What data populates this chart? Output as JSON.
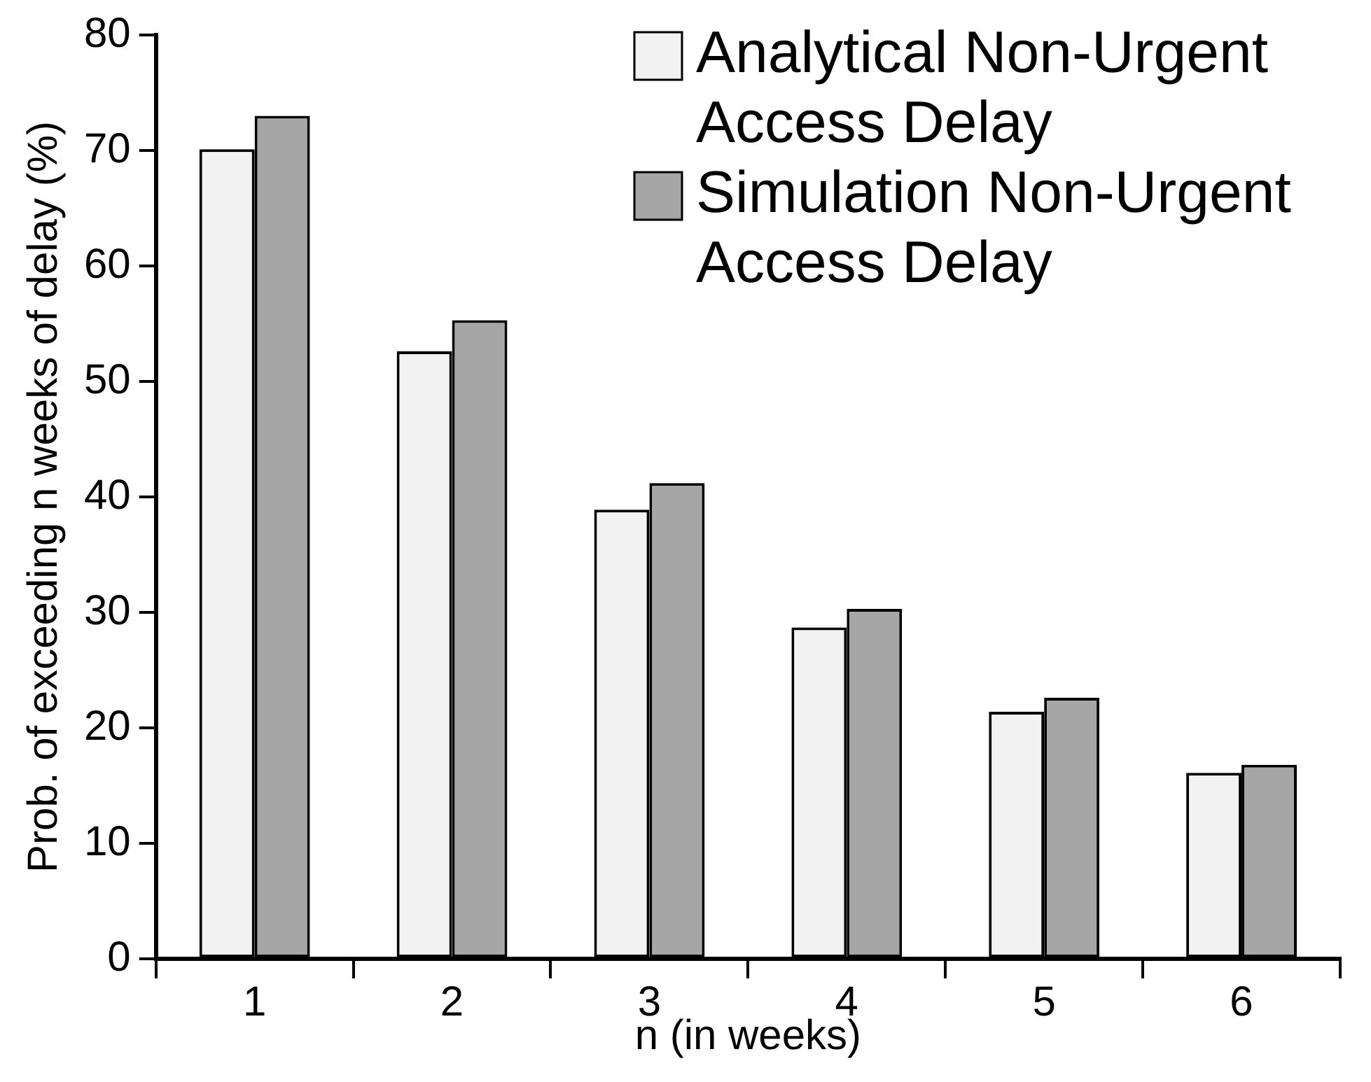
{
  "chart_data": {
    "type": "bar",
    "xlabel": "n (in weeks)",
    "ylabel": "Prob. of exceeding n weeks of delay (%)",
    "categories": [
      "1",
      "2",
      "3",
      "4",
      "5",
      "6"
    ],
    "series": [
      {
        "name": "Analytical Non-Urgent Access Delay",
        "color": "#f2f2f2",
        "values": [
          70.1,
          52.6,
          38.9,
          28.7,
          21.4,
          16.1
        ]
      },
      {
        "name": "Simulation Non-Urgent Access Delay",
        "color": "#a6a6a6",
        "values": [
          73.0,
          55.3,
          41.2,
          30.3,
          22.6,
          16.8
        ]
      }
    ],
    "ylim": [
      0,
      80
    ],
    "yticks": [
      0,
      10,
      20,
      30,
      40,
      50,
      60,
      70,
      80
    ],
    "grid": false,
    "legend": "top right"
  }
}
